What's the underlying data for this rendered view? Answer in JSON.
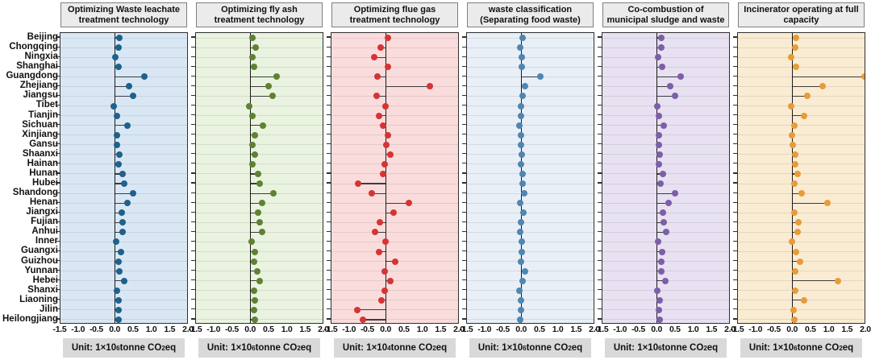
{
  "figure": {
    "x_tick_labels": [
      "-1.5",
      "-1.0",
      "-0.5",
      "0.0",
      "0.5",
      "1.0",
      "1.5",
      "2.0"
    ]
  },
  "chart_data": {
    "type": "lollipop",
    "orientation": "horizontal",
    "legend": "none",
    "grid": "horizontal-per-category",
    "xlim": [
      -1.5,
      2.0
    ],
    "x_ticks": [
      -1.5,
      -1.0,
      -0.5,
      0.0,
      0.5,
      1.0,
      1.5,
      2.0
    ],
    "x_tick_labels": [
      "-1.5",
      "-1.0",
      "-0.5",
      "0.0",
      "0.5",
      "1.0",
      "1.5",
      "2.0"
    ],
    "categories": [
      "Beijing",
      "Chongqing",
      "Ningxia",
      "Shanghai",
      "Guangdong",
      "Zhejiang",
      "Jiangsu",
      "Tibet",
      "Tianjin",
      "Sichuan",
      "Xinjiang",
      "Gansu",
      "Shaanxi",
      "Hainan",
      "Hunan",
      "Hubei",
      "Shandong",
      "Henan",
      "Jiangxi",
      "Fujian",
      "Anhui",
      "Inner",
      "Guangxi",
      "Guizhou",
      "Yunnan",
      "Hebei",
      "Shanxi",
      "Liaoning",
      "Jilin",
      "Heilongjiang"
    ],
    "series": [
      {
        "name": "Optimizing Waste leachate treatment technology",
        "title_lines": [
          "Optimizing Waste leachate",
          "treatment technology"
        ],
        "unit": {
          "prefix": "Unit: 1×10",
          "exp": "6",
          "body": " tonne CO",
          "sub": "2",
          "end": " eq"
        },
        "bg_color": "#d9e7f4",
        "dot_color": "#1f618d",
        "values": [
          0.13,
          0.11,
          0.02,
          0.11,
          0.82,
          0.39,
          0.5,
          -0.02,
          0.07,
          0.36,
          0.05,
          0.06,
          0.13,
          0.1,
          0.22,
          0.26,
          0.51,
          0.34,
          0.19,
          0.22,
          0.22,
          0.03,
          0.17,
          0.11,
          0.13,
          0.26,
          0.07,
          0.1,
          0.11,
          0.11
        ]
      },
      {
        "name": "Optimizing fly ash treatment technology",
        "title_lines": [
          "Optimizing fly ash",
          "treatment technology"
        ],
        "unit": {
          "prefix": "Unit: 1×10",
          "exp": "6",
          "body": " tonne CO",
          "sub": "2",
          "end": " eq"
        },
        "bg_color": "#e9f3df",
        "dot_color": "#5d8233",
        "values": [
          0.06,
          0.15,
          0.06,
          0.11,
          0.73,
          0.5,
          0.61,
          -0.03,
          0.06,
          0.34,
          0.12,
          0.07,
          0.13,
          0.07,
          0.21,
          0.26,
          0.63,
          0.32,
          0.22,
          0.26,
          0.32,
          0.04,
          0.13,
          0.1,
          0.19,
          0.26,
          0.1,
          0.13,
          0.1,
          0.13
        ]
      },
      {
        "name": "Optimizing flue gas treatment technology",
        "title_lines": [
          "Optimizing flue gas",
          "treatment technology"
        ],
        "unit": {
          "prefix": "Unit: 1×10",
          "exp": "4",
          "body": " tonne CO",
          "sub": "2",
          "end": " eq"
        },
        "bg_color": "#fadcdc",
        "dot_color": "#d63434",
        "values": [
          0.05,
          -0.15,
          -0.31,
          0.05,
          -0.23,
          1.23,
          -0.26,
          -0.01,
          -0.19,
          -0.07,
          0.05,
          0.02,
          0.12,
          -0.02,
          -0.08,
          -0.76,
          -0.39,
          0.65,
          0.21,
          -0.16,
          -0.3,
          -0.01,
          -0.18,
          0.25,
          -0.02,
          0.12,
          -0.02,
          -0.12,
          -0.79,
          -0.62
        ]
      },
      {
        "name": "waste classification (Separating food waste)",
        "title_lines": [
          "waste classification",
          "(Separating food waste)"
        ],
        "unit": {
          "prefix": "Unit: 1×10",
          "exp": "6",
          "body": " tonne CO",
          "sub": "2",
          "end": " eq"
        },
        "bg_color": "#e9eff7",
        "dot_color": "#4e87b2",
        "values": [
          0.03,
          -0.02,
          0.02,
          0.02,
          0.52,
          0.11,
          0.03,
          0.0,
          0.0,
          -0.05,
          0.0,
          0.0,
          0.02,
          0.0,
          0.03,
          0.03,
          0.08,
          -0.02,
          0.05,
          0.0,
          -0.02,
          0.02,
          0.02,
          0.0,
          0.11,
          0.03,
          -0.05,
          0.0,
          0.0,
          -0.02
        ]
      },
      {
        "name": "Co-combustion of municipal sludge and waste",
        "title_lines": [
          "Co-combustion of",
          "municipal sludge and waste"
        ],
        "unit": {
          "prefix": "Unit: 1×10",
          "exp": "6",
          "body": " tonne CO",
          "sub": "2",
          "end": " eq"
        },
        "bg_color": "#e7e1f1",
        "dot_color": "#7d5ea9",
        "values": [
          0.13,
          0.13,
          0.04,
          0.15,
          0.67,
          0.38,
          0.51,
          0.01,
          0.05,
          0.2,
          0.05,
          0.05,
          0.09,
          0.07,
          0.18,
          0.11,
          0.51,
          0.33,
          0.18,
          0.2,
          0.26,
          0.04,
          0.15,
          0.13,
          0.12,
          0.24,
          0.02,
          0.09,
          0.07,
          0.09
        ]
      },
      {
        "name": "Incinerator operating at full capacity",
        "title_lines": [
          "Incinerator operating at full",
          "capacity"
        ],
        "unit": {
          "prefix": "Unit: 1×10",
          "exp": "6",
          "body": " tonne CO",
          "sub": "2",
          "end": " eq"
        },
        "bg_color": "#faecd3",
        "dot_color": "#e69c38",
        "values": [
          0.1,
          0.08,
          -0.02,
          0.1,
          2.0,
          0.85,
          0.42,
          -0.02,
          0.33,
          0.06,
          0.0,
          0.02,
          0.09,
          0.08,
          0.16,
          0.05,
          0.26,
          0.98,
          0.07,
          0.18,
          0.14,
          0.0,
          0.11,
          0.22,
          0.09,
          1.27,
          0.09,
          0.33,
          0.03,
          0.05
        ]
      }
    ]
  }
}
